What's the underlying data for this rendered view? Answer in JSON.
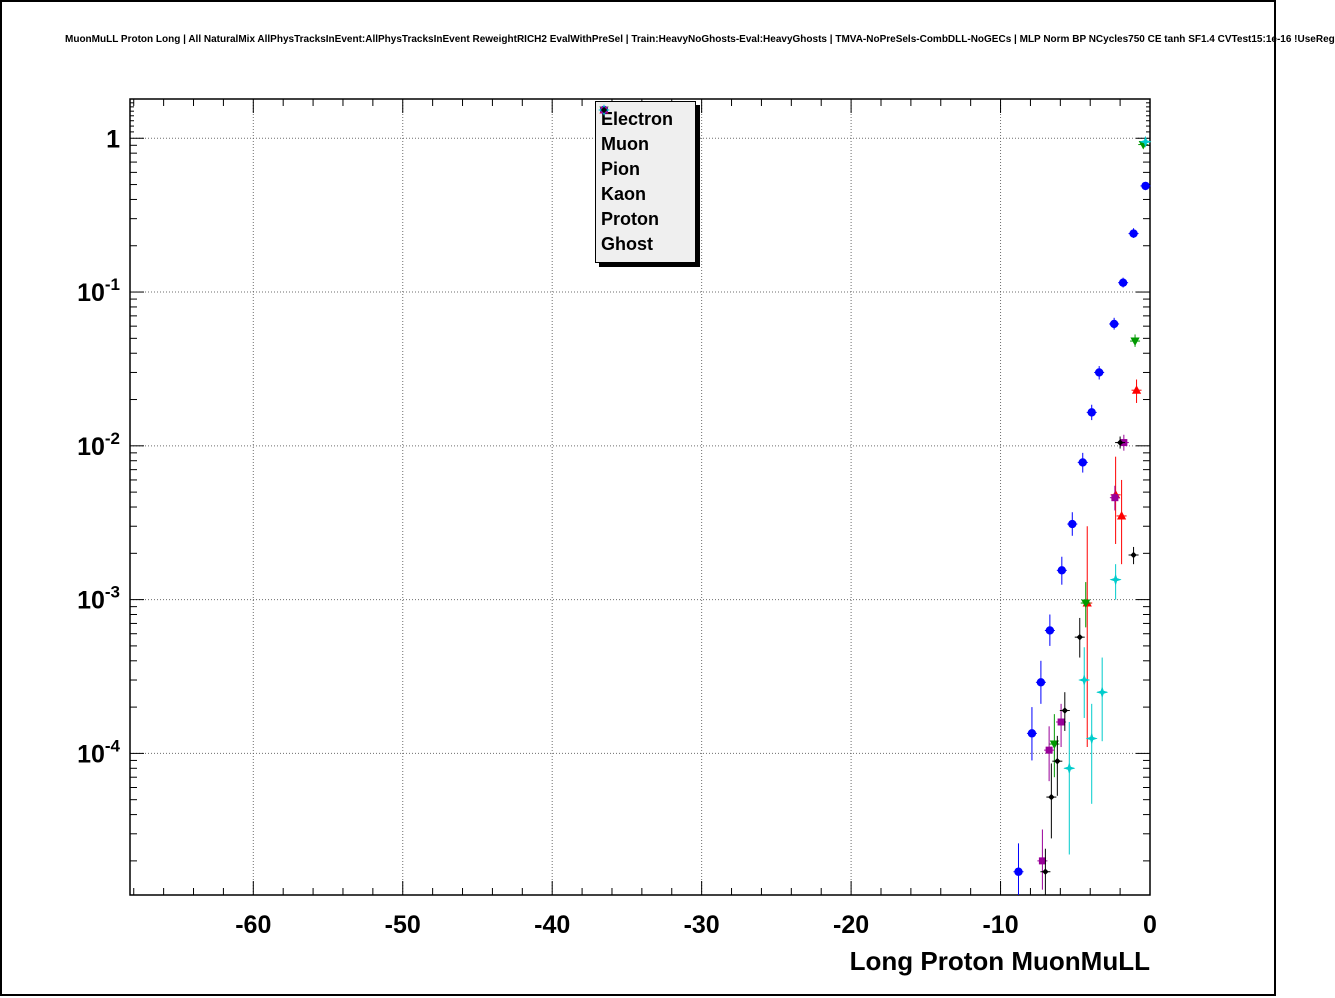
{
  "title": "MuonMuLL Proton Long | All NaturalMix AllPhysTracksInEvent:AllPhysTracksInEvent ReweightRICH2 EvalWithPreSel | Train:HeavyNoGhosts-Eval:HeavyGhosts | TMVA-NoPreSels-CombDLL-NoGECs | MLP Norm BP NCycles750 CE tanh SF1.4 CVTest15:1e-16 !UseReg",
  "chart_data": {
    "type": "scatter",
    "title": "",
    "xlabel": "Long Proton MuonMuLL",
    "ylabel": "",
    "yscale": "log",
    "xlim": [
      -68.25,
      0
    ],
    "ylim": [
      1.2e-05,
      1.8
    ],
    "x_ticks": [
      -60,
      -50,
      -40,
      -30,
      -20,
      -10,
      0
    ],
    "x_minor_step": 2,
    "y_tick_decades": [
      0,
      -1,
      -2,
      -3,
      -4
    ],
    "grid": true,
    "grid_style": "dotted",
    "legend_position": "top-center",
    "point_format": [
      "x",
      "y",
      "err_low",
      "err_high"
    ],
    "series": [
      {
        "name": "Electron",
        "color": "#ff0000",
        "marker": "triangle-up",
        "points": [
          [
            -0.9,
            0.023,
            0.019,
            0.027
          ],
          [
            -1.9,
            0.0035,
            0.0017,
            0.006
          ],
          [
            -2.3,
            0.0048,
            0.0023,
            0.0085
          ],
          [
            -4.2,
            0.00095,
            0.00011,
            0.003
          ]
        ]
      },
      {
        "name": "Muon",
        "color": "#0000ff",
        "marker": "circle",
        "points": [
          [
            -0.3,
            0.49,
            0.46,
            0.52
          ],
          [
            -1.1,
            0.24,
            0.225,
            0.26
          ],
          [
            -1.8,
            0.115,
            0.107,
            0.124
          ],
          [
            -2.4,
            0.062,
            0.057,
            0.068
          ],
          [
            -3.4,
            0.03,
            0.027,
            0.033
          ],
          [
            -3.9,
            0.0165,
            0.0147,
            0.0185
          ],
          [
            -4.5,
            0.0078,
            0.0067,
            0.009
          ],
          [
            -5.2,
            0.0031,
            0.0026,
            0.0037
          ],
          [
            -5.9,
            0.00155,
            0.00125,
            0.0019
          ],
          [
            -6.7,
            0.00063,
            0.0005,
            0.0008
          ],
          [
            -7.3,
            0.00029,
            0.00021,
            0.0004
          ],
          [
            -7.9,
            0.000135,
            9e-05,
            0.0002
          ],
          [
            -8.8,
            1.7e-05,
            1.2e-05,
            2.6e-05
          ]
        ]
      },
      {
        "name": "Pion",
        "color": "#009900",
        "marker": "triangle-down",
        "points": [
          [
            -0.45,
            0.91,
            0.88,
            0.94
          ],
          [
            -1.0,
            0.048,
            0.044,
            0.053
          ],
          [
            -4.3,
            0.00095,
            0.00066,
            0.0013
          ],
          [
            -6.4,
            0.000115,
            7e-05,
            0.00018
          ]
        ]
      },
      {
        "name": "Kaon",
        "color": "#990099",
        "marker": "square",
        "points": [
          [
            -1.75,
            0.0105,
            0.0093,
            0.0118
          ],
          [
            -2.35,
            0.0046,
            0.0038,
            0.0055
          ],
          [
            -5.95,
            0.00016,
            0.00011,
            0.00021
          ],
          [
            -6.75,
            0.000105,
            6.6e-05,
            0.00015
          ],
          [
            -7.2,
            2e-05,
            1.3e-05,
            3.2e-05
          ]
        ]
      },
      {
        "name": "Proton",
        "color": "#00cccc",
        "marker": "star",
        "points": [
          [
            -0.3,
            0.95,
            0.92,
            0.98
          ],
          [
            -2.3,
            0.00135,
            0.001,
            0.0017
          ],
          [
            -3.2,
            0.00025,
            0.00012,
            0.00042
          ],
          [
            -3.9,
            0.000125,
            4.7e-05,
            0.00021
          ],
          [
            -4.4,
            0.0003,
            0.00017,
            0.00049
          ],
          [
            -5.4,
            8e-05,
            2.2e-05,
            0.00016
          ]
        ]
      },
      {
        "name": "Ghost",
        "color": "#000000",
        "marker": "diamond",
        "points": [
          [
            -1.1,
            0.00195,
            0.0017,
            0.0022
          ],
          [
            -2.0,
            0.0105,
            0.0096,
            0.0115
          ],
          [
            -4.7,
            0.00057,
            0.00042,
            0.00076
          ],
          [
            -5.7,
            0.00019,
            0.00014,
            0.00025
          ],
          [
            -6.2,
            8.9e-05,
            5.3e-05,
            0.00013
          ],
          [
            -6.6,
            5.2e-05,
            2.8e-05,
            8.6e-05
          ],
          [
            -7.0,
            1.7e-05,
            1.2e-05,
            2.4e-05
          ]
        ]
      }
    ]
  }
}
